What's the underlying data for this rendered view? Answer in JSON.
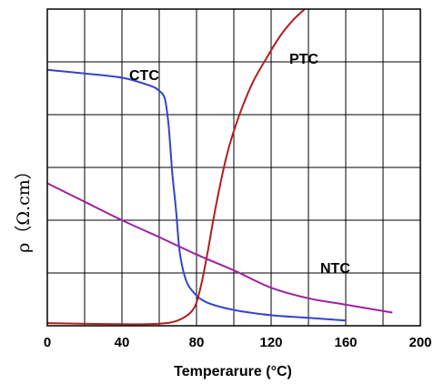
{
  "chart_data": {
    "type": "line",
    "title": "",
    "xlabel": "Temperarure (°C)",
    "ylabel": "ρ（Ω.cm）",
    "xlim": [
      0,
      200
    ],
    "ylim": [
      0,
      6
    ],
    "x_ticks": [
      "0",
      "40",
      "80",
      "120",
      "160",
      "200"
    ],
    "y_tick_labels_shown": false,
    "grid": true,
    "legend": "none",
    "series": [
      {
        "name": "CTC",
        "color": "#3344cc",
        "points": [
          [
            0,
            4.85
          ],
          [
            20,
            4.78
          ],
          [
            40,
            4.7
          ],
          [
            55,
            4.55
          ],
          [
            60,
            4.45
          ],
          [
            63,
            4.3
          ],
          [
            65,
            3.8
          ],
          [
            67,
            2.9
          ],
          [
            69,
            2.2
          ],
          [
            71,
            1.4
          ],
          [
            74,
            0.9
          ],
          [
            78,
            0.65
          ],
          [
            85,
            0.45
          ],
          [
            100,
            0.3
          ],
          [
            120,
            0.2
          ],
          [
            140,
            0.15
          ],
          [
            160,
            0.1
          ]
        ]
      },
      {
        "name": "PTC",
        "color": "#b02020",
        "points": [
          [
            0,
            0.05
          ],
          [
            40,
            0.03
          ],
          [
            60,
            0.04
          ],
          [
            70,
            0.1
          ],
          [
            78,
            0.3
          ],
          [
            82,
            0.7
          ],
          [
            86,
            1.4
          ],
          [
            90,
            2.2
          ],
          [
            96,
            3.2
          ],
          [
            102,
            3.9
          ],
          [
            110,
            4.6
          ],
          [
            118,
            5.1
          ],
          [
            125,
            5.5
          ],
          [
            132,
            5.8
          ],
          [
            138,
            6.0
          ]
        ]
      },
      {
        "name": "NTC",
        "color": "#a020a0",
        "points": [
          [
            0,
            2.7
          ],
          [
            20,
            2.35
          ],
          [
            40,
            2.0
          ],
          [
            60,
            1.68
          ],
          [
            80,
            1.35
          ],
          [
            100,
            1.05
          ],
          [
            120,
            0.72
          ],
          [
            140,
            0.52
          ],
          [
            160,
            0.4
          ],
          [
            185,
            0.25
          ]
        ]
      }
    ],
    "annotations": [
      {
        "text": "CTC",
        "series": "CTC"
      },
      {
        "text": "PTC",
        "series": "PTC"
      },
      {
        "text": "NTC",
        "series": "NTC"
      }
    ]
  }
}
